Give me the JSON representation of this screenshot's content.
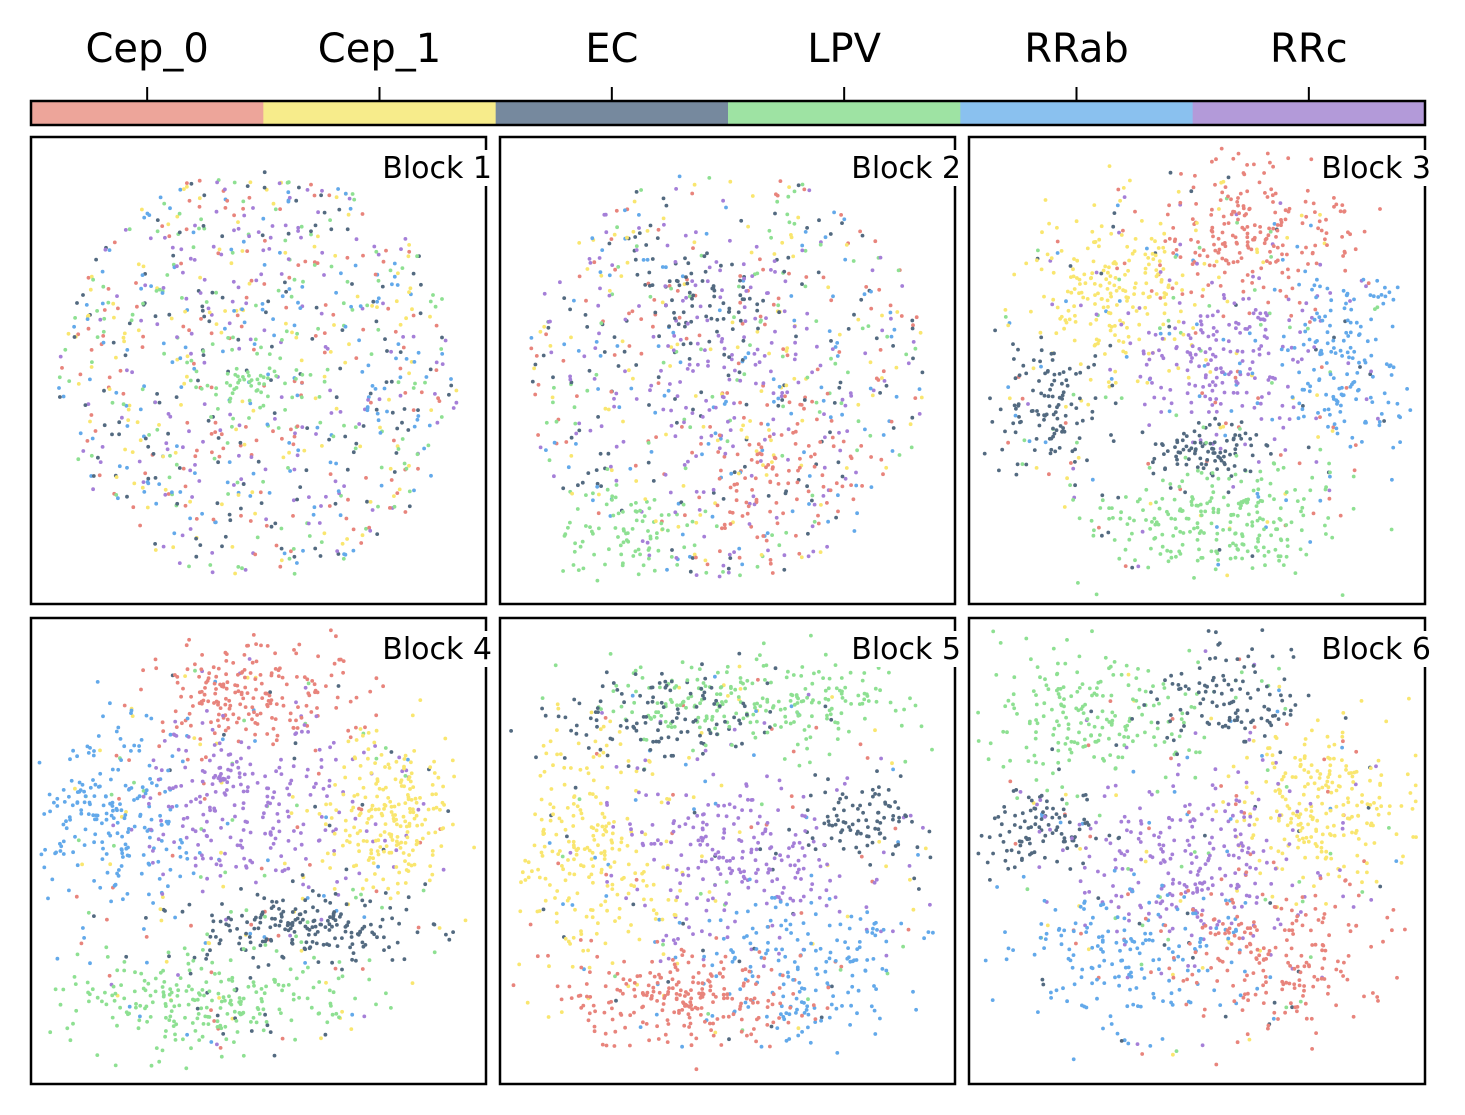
{
  "chart_data": {
    "type": "scatter",
    "classes": [
      "Cep_0",
      "Cep_1",
      "EC",
      "LPV",
      "RRab",
      "RRc"
    ],
    "class_colors": {
      "Cep_0": "#eda59a",
      "Cep_1": "#f7ec8b",
      "EC": "#76899e",
      "LPV": "#9ee3a3",
      "RRab": "#8ac1ef",
      "RRc": "#b39ad9"
    },
    "point_colors": {
      "Cep_0": "#e8847c",
      "Cep_1": "#f9e66f",
      "EC": "#536a80",
      "LPV": "#8ee092",
      "RRab": "#63a9ea",
      "RRc": "#a57fd8"
    },
    "colorbar": {
      "position": "top",
      "ticks": [
        "Cep_0",
        "Cep_1",
        "EC",
        "LPV",
        "RRab",
        "RRc"
      ]
    },
    "panels": [
      {
        "title": "Block 1",
        "clusters": [
          {
            "class": "LPV",
            "center": [
              0.48,
              0.52
            ],
            "spread": [
              0.07,
              0.05
            ],
            "n": 60
          }
        ],
        "mix_points": 900
      },
      {
        "title": "Block 2",
        "clusters": [
          {
            "class": "Cep_0",
            "center": [
              0.58,
              0.72
            ],
            "spread": [
              0.08,
              0.08
            ],
            "n": 90
          },
          {
            "class": "LPV",
            "center": [
              0.28,
              0.85
            ],
            "spread": [
              0.08,
              0.05
            ],
            "n": 80
          },
          {
            "class": "EC",
            "center": [
              0.45,
              0.32
            ],
            "spread": [
              0.08,
              0.05
            ],
            "n": 60
          },
          {
            "class": "RRc",
            "center": [
              0.5,
              0.5
            ],
            "spread": [
              0.14,
              0.12
            ],
            "n": 120
          }
        ],
        "mix_points": 700
      },
      {
        "title": "Block 3",
        "clusters": [
          {
            "class": "Cep_0",
            "center": [
              0.62,
              0.2
            ],
            "spread": [
              0.12,
              0.08
            ],
            "n": 220
          },
          {
            "class": "Cep_1",
            "center": [
              0.33,
              0.34
            ],
            "spread": [
              0.1,
              0.1
            ],
            "n": 200
          },
          {
            "class": "RRc",
            "center": [
              0.56,
              0.47
            ],
            "spread": [
              0.1,
              0.08
            ],
            "n": 180
          },
          {
            "class": "RRab",
            "center": [
              0.82,
              0.47
            ],
            "spread": [
              0.08,
              0.1
            ],
            "n": 160
          },
          {
            "class": "EC",
            "center": [
              0.18,
              0.58
            ],
            "spread": [
              0.06,
              0.07
            ],
            "n": 110
          },
          {
            "class": "EC",
            "center": [
              0.5,
              0.67
            ],
            "spread": [
              0.06,
              0.03
            ],
            "n": 90
          },
          {
            "class": "LPV",
            "center": [
              0.55,
              0.82
            ],
            "spread": [
              0.13,
              0.06
            ],
            "n": 230
          }
        ],
        "mix_points": 260
      },
      {
        "title": "Block 4",
        "clusters": [
          {
            "class": "Cep_0",
            "center": [
              0.47,
              0.16
            ],
            "spread": [
              0.11,
              0.06
            ],
            "n": 200
          },
          {
            "class": "RRab",
            "center": [
              0.17,
              0.42
            ],
            "spread": [
              0.1,
              0.1
            ],
            "n": 220
          },
          {
            "class": "RRc",
            "center": [
              0.45,
              0.4
            ],
            "spread": [
              0.13,
              0.09
            ],
            "n": 230
          },
          {
            "class": "Cep_1",
            "center": [
              0.78,
              0.42
            ],
            "spread": [
              0.08,
              0.09
            ],
            "n": 220
          },
          {
            "class": "EC",
            "center": [
              0.6,
              0.66
            ],
            "spread": [
              0.13,
              0.04
            ],
            "n": 190
          },
          {
            "class": "LPV",
            "center": [
              0.38,
              0.82
            ],
            "spread": [
              0.16,
              0.05
            ],
            "n": 230
          }
        ],
        "mix_points": 230
      },
      {
        "title": "Block 5",
        "clusters": [
          {
            "class": "LPV",
            "center": [
              0.57,
              0.18
            ],
            "spread": [
              0.17,
              0.05
            ],
            "n": 230
          },
          {
            "class": "EC",
            "center": [
              0.35,
              0.22
            ],
            "spread": [
              0.12,
              0.05
            ],
            "n": 110
          },
          {
            "class": "EC",
            "center": [
              0.8,
              0.43
            ],
            "spread": [
              0.07,
              0.04
            ],
            "n": 90
          },
          {
            "class": "Cep_1",
            "center": [
              0.2,
              0.52
            ],
            "spread": [
              0.09,
              0.12
            ],
            "n": 230
          },
          {
            "class": "RRc",
            "center": [
              0.52,
              0.52
            ],
            "spread": [
              0.14,
              0.1
            ],
            "n": 230
          },
          {
            "class": "RRab",
            "center": [
              0.68,
              0.75
            ],
            "spread": [
              0.12,
              0.08
            ],
            "n": 170
          },
          {
            "class": "Cep_0",
            "center": [
              0.4,
              0.82
            ],
            "spread": [
              0.14,
              0.05
            ],
            "n": 230
          }
        ],
        "mix_points": 200
      },
      {
        "title": "Block 6",
        "clusters": [
          {
            "class": "LPV",
            "center": [
              0.25,
              0.22
            ],
            "spread": [
              0.12,
              0.07
            ],
            "n": 200
          },
          {
            "class": "EC",
            "center": [
              0.56,
              0.17
            ],
            "spread": [
              0.09,
              0.06
            ],
            "n": 110
          },
          {
            "class": "EC",
            "center": [
              0.15,
              0.46
            ],
            "spread": [
              0.07,
              0.04
            ],
            "n": 100
          },
          {
            "class": "Cep_1",
            "center": [
              0.78,
              0.4
            ],
            "spread": [
              0.09,
              0.09
            ],
            "n": 230
          },
          {
            "class": "RRc",
            "center": [
              0.47,
              0.52
            ],
            "spread": [
              0.13,
              0.1
            ],
            "n": 230
          },
          {
            "class": "RRab",
            "center": [
              0.35,
              0.72
            ],
            "spread": [
              0.12,
              0.08
            ],
            "n": 170
          },
          {
            "class": "Cep_0",
            "center": [
              0.68,
              0.72
            ],
            "spread": [
              0.12,
              0.08
            ],
            "n": 200
          }
        ],
        "mix_points": 200
      }
    ]
  }
}
